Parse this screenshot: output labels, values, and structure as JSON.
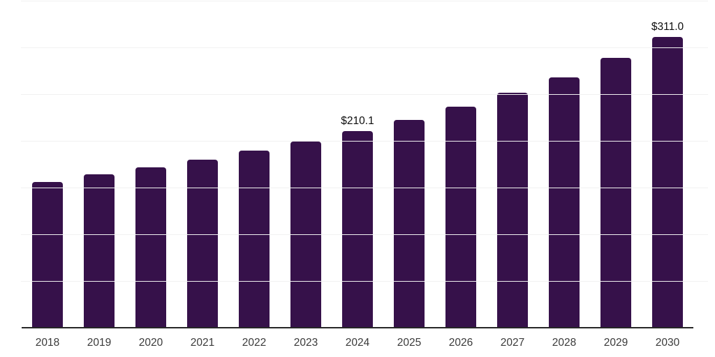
{
  "chart_data": {
    "type": "bar",
    "title": "",
    "xlabel": "",
    "ylabel": "",
    "categories": [
      "2018",
      "2019",
      "2020",
      "2021",
      "2022",
      "2023",
      "2024",
      "2025",
      "2026",
      "2027",
      "2028",
      "2029",
      "2030"
    ],
    "values": [
      156.2,
      164.2,
      172.0,
      179.6,
      189.9,
      199.0,
      210.1,
      222.3,
      236.3,
      251.2,
      267.9,
      288.6,
      311.0
    ],
    "data_labels": {
      "2024": "$210.1",
      "2030": "$311.0"
    },
    "ylim": [
      0,
      350
    ],
    "gridline_step": 50,
    "grid": true,
    "legend": false,
    "colors": {
      "bar": "#36114A",
      "background": "#ffffff",
      "gridline": "#f1f1f1",
      "axis_line": "#262626",
      "tick_label": "#3a3a3a",
      "data_label": "#0d0d0d"
    }
  }
}
